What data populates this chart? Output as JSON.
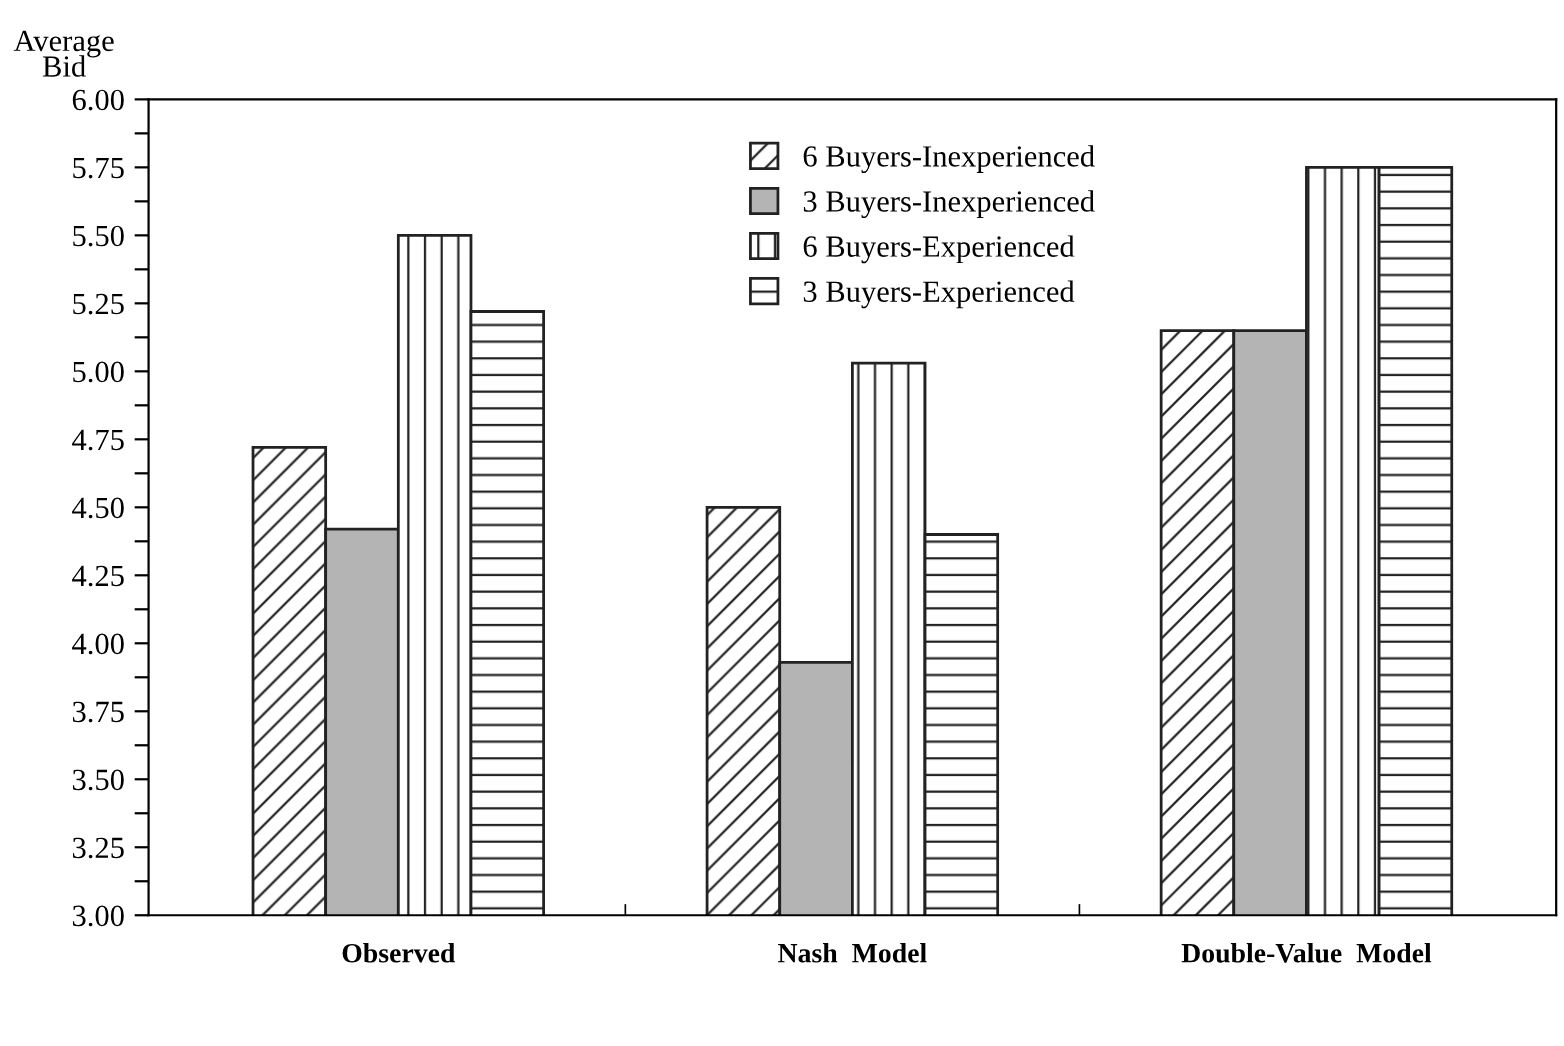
{
  "chart_data": {
    "type": "bar",
    "ylabel": "Average\nBid",
    "categories": [
      "Observed",
      "Nash  Model",
      "Double-Value  Model"
    ],
    "series": [
      {
        "name": "6 Buyers-Inexperienced",
        "color": "#222222",
        "values": [
          4.72,
          4.5,
          5.15
        ]
      },
      {
        "name": "3 Buyers-Inexperienced",
        "color": "#b4b4b4",
        "values": [
          4.42,
          3.93,
          5.15
        ]
      },
      {
        "name": "6 Buyers-Experienced",
        "color": "#222222",
        "values": [
          5.5,
          5.03,
          5.75
        ]
      },
      {
        "name": "3 Buyers-Experienced",
        "color": "#222222",
        "values": [
          5.22,
          4.4,
          5.75
        ]
      }
    ],
    "ylim": [
      3.0,
      6.0
    ],
    "yticks": [
      {
        "value": 3.0,
        "label": "3.00"
      },
      {
        "value": 3.125,
        "label": null
      },
      {
        "value": 3.25,
        "label": "3.25"
      },
      {
        "value": 3.375,
        "label": null
      },
      {
        "value": 3.5,
        "label": "3.50"
      },
      {
        "value": 3.625,
        "label": null
      },
      {
        "value": 3.75,
        "label": "3.75"
      },
      {
        "value": 3.875,
        "label": null
      },
      {
        "value": 4.0,
        "label": "4.00"
      },
      {
        "value": 4.125,
        "label": null
      },
      {
        "value": 4.25,
        "label": "4.25"
      },
      {
        "value": 4.375,
        "label": null
      },
      {
        "value": 4.5,
        "label": "4.50"
      },
      {
        "value": 4.625,
        "label": null
      },
      {
        "value": 4.75,
        "label": "4.75"
      },
      {
        "value": 4.875,
        "label": null
      },
      {
        "value": 5.0,
        "label": "5.00"
      },
      {
        "value": 5.125,
        "label": null
      },
      {
        "value": 5.25,
        "label": "5.25"
      },
      {
        "value": 5.375,
        "label": null
      },
      {
        "value": 5.5,
        "label": "5.50"
      },
      {
        "value": 5.625,
        "label": null
      },
      {
        "value": 5.75,
        "label": "5.75"
      },
      {
        "value": 5.875,
        "label": null
      },
      {
        "value": 6.0,
        "label": "6.00"
      }
    ],
    "grid": false,
    "legend": "top"
  }
}
